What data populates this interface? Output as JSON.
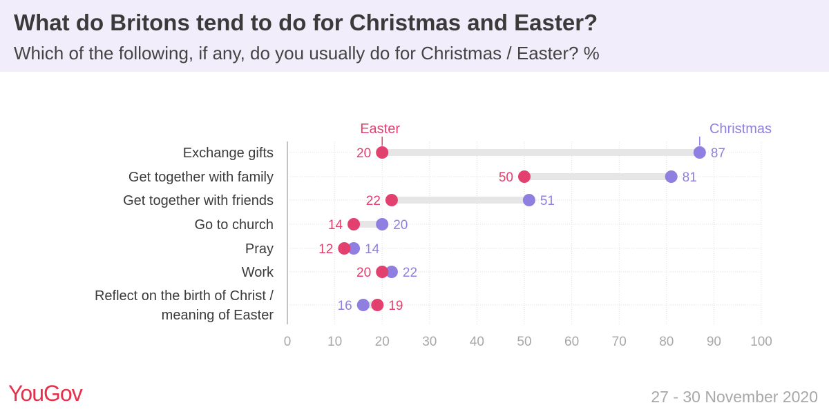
{
  "header": {
    "title": "What do Britons tend to do for Christmas and Easter?",
    "subtitle": "Which of the following, if any, do you usually do for Christmas / Easter? %"
  },
  "footer": {
    "logo": "YouGov",
    "date": "27 - 30 November 2020"
  },
  "chart_data": {
    "type": "dumbbell",
    "categories": [
      [
        "Exchange gifts"
      ],
      [
        "Get together with family"
      ],
      [
        "Get together with friends"
      ],
      [
        "Go to church"
      ],
      [
        "Pray"
      ],
      [
        "Work"
      ],
      [
        "Reflect on the birth of Christ /",
        "meaning of Easter"
      ]
    ],
    "series": [
      {
        "name": "Easter",
        "color": "#e2406f",
        "values": [
          20,
          50,
          22,
          14,
          12,
          20,
          19
        ]
      },
      {
        "name": "Christmas",
        "color": "#8f7fe0",
        "values": [
          87,
          81,
          51,
          20,
          14,
          22,
          16
        ]
      }
    ],
    "xlim": [
      0,
      100
    ],
    "xticks": [
      0,
      10,
      20,
      30,
      40,
      50,
      60,
      70,
      80,
      90,
      100
    ],
    "grid": true
  }
}
